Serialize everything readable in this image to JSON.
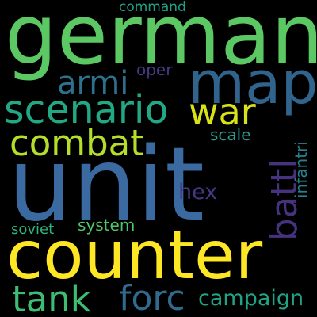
{
  "background": "#000000",
  "words": [
    {
      "key": "unit",
      "text": "unit",
      "color": "#3b6aa0"
    },
    {
      "key": "german",
      "text": "german",
      "color": "#5cc863"
    },
    {
      "key": "counter",
      "text": "counter",
      "color": "#fde725"
    },
    {
      "key": "map",
      "text": "map",
      "color": "#31648d"
    },
    {
      "key": "scenario",
      "text": "scenario",
      "color": "#22a884"
    },
    {
      "key": "combat",
      "text": "combat",
      "color": "#b5de2b"
    },
    {
      "key": "war",
      "text": "war",
      "color": "#d8e219"
    },
    {
      "key": "armi",
      "text": "armi",
      "color": "#2c728e"
    },
    {
      "key": "battl",
      "text": "battl",
      "color": "#46327e"
    },
    {
      "key": "tank",
      "text": "tank",
      "color": "#3fbc73"
    },
    {
      "key": "forc",
      "text": "forc",
      "color": "#306a8e"
    },
    {
      "key": "campaign",
      "text": "campaign",
      "color": "#20a386"
    },
    {
      "key": "hex",
      "text": "hex",
      "color": "#453781"
    },
    {
      "key": "system",
      "text": "system",
      "color": "#50c46a"
    },
    {
      "key": "soviet",
      "text": "soviet",
      "color": "#2db27d"
    },
    {
      "key": "infantri",
      "text": "infantri",
      "color": "#25838e"
    },
    {
      "key": "scale",
      "text": "scale",
      "color": "#2a9d8e"
    },
    {
      "key": "oper",
      "text": "oper",
      "color": "#443a83"
    },
    {
      "key": "command",
      "text": "command",
      "color": "#1fa187"
    }
  ]
}
